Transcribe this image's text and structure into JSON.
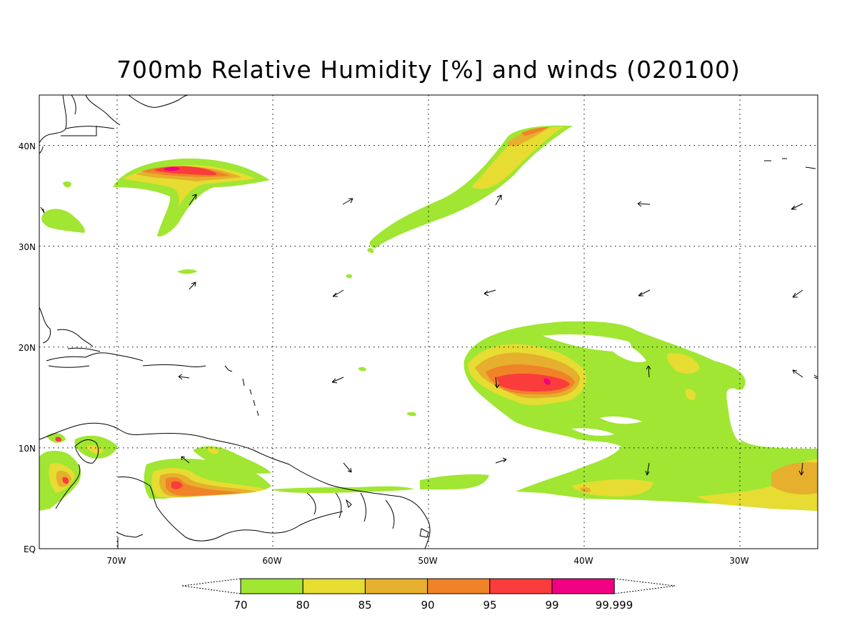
{
  "title": "700mb Relative Humidity [%] and winds (020100)",
  "lat_labels": [
    "EQ",
    "10N",
    "20N",
    "30N",
    "40N"
  ],
  "lon_labels": [
    "70W",
    "60W",
    "50W",
    "40W",
    "30W"
  ],
  "colorbar": {
    "levels": [
      "70",
      "80",
      "85",
      "90",
      "95",
      "99",
      "99.999"
    ],
    "colors": [
      "#a0e632",
      "#e6dc32",
      "#e6af2d",
      "#f08228",
      "#fa3c3c",
      "#f00082"
    ]
  },
  "map_extent": {
    "lon": [
      -75,
      -25
    ],
    "lat": [
      0,
      45
    ]
  }
}
